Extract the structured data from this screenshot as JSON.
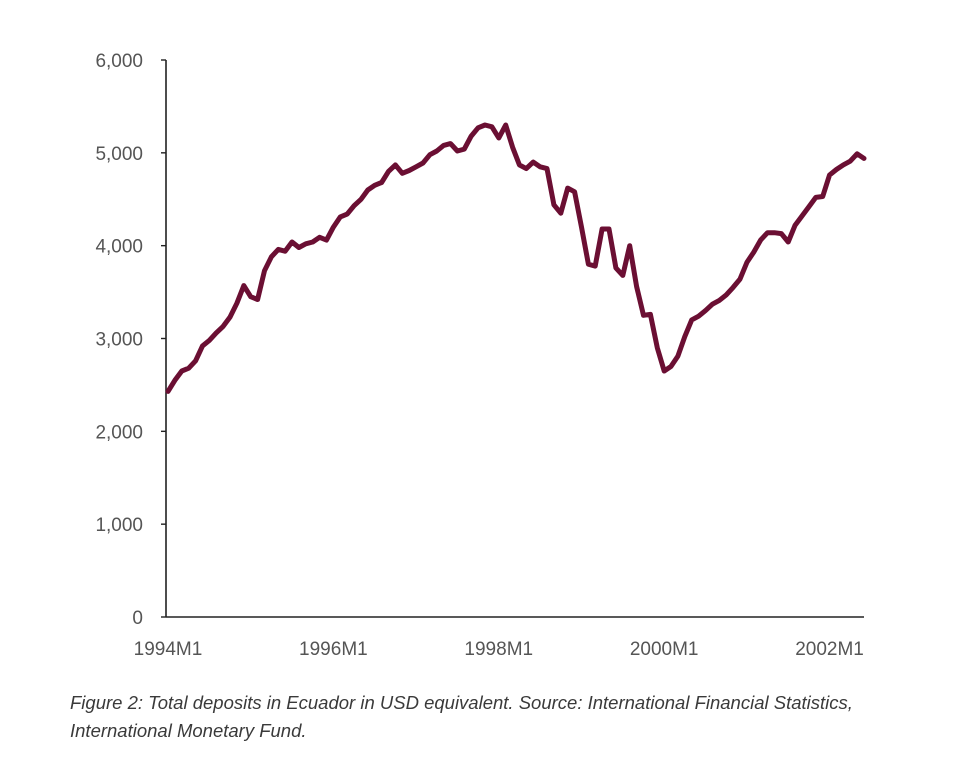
{
  "colors": {
    "line": "#6b0f33",
    "axis": "#222222",
    "tick_text": "#555555"
  },
  "caption": "Figure 2: Total deposits in Ecuador in USD equivalent. Source: International Financial Statistics, International Monetary Fund.",
  "chart_data": {
    "type": "line",
    "title": "",
    "xlabel": "",
    "ylabel": "",
    "ylim": [
      0,
      6000
    ],
    "yticks": [
      0,
      1000,
      2000,
      3000,
      4000,
      5000,
      6000
    ],
    "ytick_labels": [
      "0",
      "1,000",
      "2,000",
      "3,000",
      "4,000",
      "5,000",
      "6,000"
    ],
    "xticks": [
      "1994M1",
      "1996M1",
      "1998M1",
      "2000M1",
      "2002M1"
    ],
    "grid": false,
    "legend": "none",
    "x": [
      "1994M1",
      "1994M2",
      "1994M3",
      "1994M4",
      "1994M5",
      "1994M6",
      "1994M7",
      "1994M8",
      "1994M9",
      "1994M10",
      "1994M11",
      "1994M12",
      "1995M1",
      "1995M2",
      "1995M3",
      "1995M4",
      "1995M5",
      "1995M6",
      "1995M7",
      "1995M8",
      "1995M9",
      "1995M10",
      "1995M11",
      "1995M12",
      "1996M1",
      "1996M2",
      "1996M3",
      "1996M4",
      "1996M5",
      "1996M6",
      "1996M7",
      "1996M8",
      "1996M9",
      "1996M10",
      "1996M11",
      "1996M12",
      "1997M1",
      "1997M2",
      "1997M3",
      "1997M4",
      "1997M5",
      "1997M6",
      "1997M7",
      "1997M8",
      "1997M9",
      "1997M10",
      "1997M11",
      "1997M12",
      "1998M1",
      "1998M2",
      "1998M3",
      "1998M4",
      "1998M5",
      "1998M6",
      "1998M7",
      "1998M8",
      "1998M9",
      "1998M10",
      "1998M11",
      "1998M12",
      "1999M1",
      "1999M2",
      "1999M3",
      "1999M4",
      "1999M5",
      "1999M6",
      "1999M7",
      "1999M8",
      "1999M9",
      "1999M10",
      "1999M11",
      "1999M12",
      "2000M1",
      "2000M2",
      "2000M3",
      "2000M4",
      "2000M5",
      "2000M6",
      "2000M7",
      "2000M8",
      "2000M9",
      "2000M10",
      "2000M11",
      "2000M12",
      "2001M1",
      "2001M2",
      "2001M3",
      "2001M4",
      "2001M5",
      "2001M6",
      "2001M7",
      "2001M8",
      "2001M9",
      "2001M10",
      "2001M11",
      "2001M12",
      "2002M1",
      "2002M2",
      "2002M3",
      "2002M4",
      "2002M5",
      "2002M6"
    ],
    "series": [
      {
        "values": [
          2430,
          2550,
          2650,
          2680,
          2760,
          2920,
          2980,
          3060,
          3130,
          3230,
          3380,
          3570,
          3450,
          3420,
          3730,
          3880,
          3960,
          3940,
          4040,
          3980,
          4020,
          4040,
          4090,
          4060,
          4200,
          4310,
          4340,
          4430,
          4500,
          4600,
          4650,
          4680,
          4800,
          4870,
          4780,
          4810,
          4850,
          4890,
          4980,
          5020,
          5080,
          5100,
          5020,
          5040,
          5180,
          5270,
          5300,
          5280,
          5160,
          5300,
          5060,
          4870,
          4830,
          4900,
          4850,
          4830,
          4440,
          4350,
          4620,
          4580,
          4200,
          3800,
          3780,
          4180,
          4180,
          3760,
          3680,
          4000,
          3560,
          3250,
          3260,
          2900,
          2650,
          2700,
          2810,
          3020,
          3200,
          3240,
          3300,
          3370,
          3410,
          3470,
          3550,
          3640,
          3820,
          3930,
          4060,
          4140,
          4140,
          4130,
          4040,
          4220,
          4320,
          4420,
          4520,
          4530,
          4760,
          4820,
          4870,
          4910,
          4990,
          4940
        ]
      }
    ]
  }
}
